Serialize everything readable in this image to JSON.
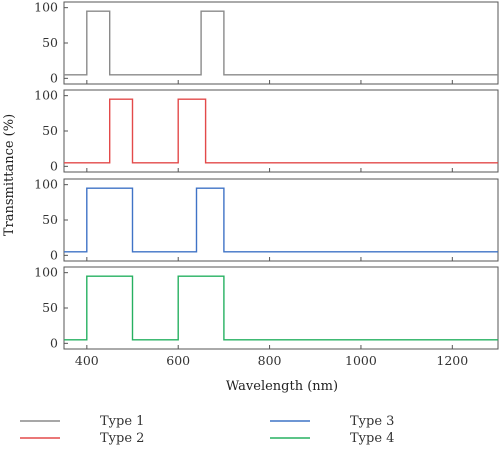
{
  "chart_data": {
    "type": "line",
    "xlabel": "Wavelength (nm)",
    "ylabel": "Transmittance (%)",
    "xlim": [
      350,
      1300
    ],
    "ylim": [
      -8,
      108
    ],
    "x_ticks": [
      400,
      600,
      800,
      1000,
      1200
    ],
    "y_ticks": [
      0,
      50,
      100
    ],
    "grid": false,
    "legend_position": "bottom",
    "series": [
      {
        "name": "Type 1",
        "color": "#8a8a8a",
        "x": [
          350,
          400,
          400,
          450,
          450,
          650,
          650,
          700,
          700,
          1300
        ],
        "y": [
          5,
          5,
          95,
          95,
          5,
          5,
          95,
          95,
          5,
          5
        ]
      },
      {
        "name": "Type 2",
        "color": "#e34a4a",
        "x": [
          350,
          450,
          450,
          500,
          500,
          600,
          600,
          660,
          660,
          1300
        ],
        "y": [
          5,
          5,
          95,
          95,
          5,
          5,
          95,
          95,
          5,
          5
        ]
      },
      {
        "name": "Type 3",
        "color": "#3f73c6",
        "x": [
          350,
          400,
          400,
          500,
          500,
          640,
          640,
          700,
          700,
          1300
        ],
        "y": [
          5,
          5,
          95,
          95,
          5,
          5,
          95,
          95,
          5,
          5
        ]
      },
      {
        "name": "Type 4",
        "color": "#26b060",
        "x": [
          350,
          400,
          400,
          500,
          500,
          600,
          600,
          700,
          700,
          1300
        ],
        "y": [
          5,
          5,
          95,
          95,
          5,
          5,
          95,
          95,
          5,
          5
        ]
      }
    ]
  }
}
